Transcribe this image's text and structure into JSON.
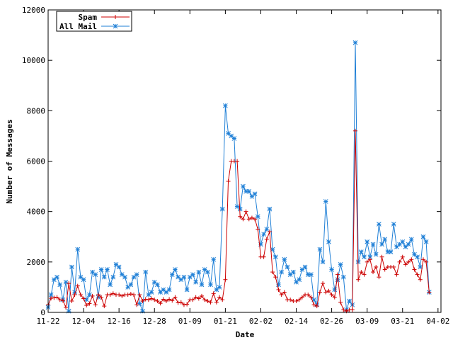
{
  "chart_data": {
    "type": "line",
    "xlabel": "Date",
    "ylabel": "Number of Messages",
    "ylim": [
      0,
      12000
    ],
    "yticks": [
      0,
      2000,
      4000,
      6000,
      8000,
      10000,
      12000
    ],
    "xticks": [
      "11-22",
      "12-04",
      "12-16",
      "12-28",
      "01-09",
      "01-21",
      "02-02",
      "02-14",
      "02-26",
      "03-09",
      "03-21",
      "04-02"
    ],
    "xlim_days": [
      0,
      133
    ],
    "legend_position": "top-left",
    "grid": false,
    "series": [
      {
        "name": "Spam",
        "color": "#cc0000",
        "marker": "plus",
        "values": [
          [
            0,
            300
          ],
          [
            1,
            560
          ],
          [
            2,
            580
          ],
          [
            3,
            600
          ],
          [
            4,
            500
          ],
          [
            5,
            470
          ],
          [
            6,
            200
          ],
          [
            7,
            1150
          ],
          [
            8,
            450
          ],
          [
            9,
            700
          ],
          [
            10,
            1050
          ],
          [
            11,
            700
          ],
          [
            12,
            550
          ],
          [
            13,
            280
          ],
          [
            14,
            350
          ],
          [
            15,
            650
          ],
          [
            16,
            300
          ],
          [
            17,
            700
          ],
          [
            18,
            600
          ],
          [
            19,
            250
          ],
          [
            20,
            700
          ],
          [
            21,
            700
          ],
          [
            22,
            750
          ],
          [
            23,
            700
          ],
          [
            24,
            700
          ],
          [
            25,
            650
          ],
          [
            26,
            700
          ],
          [
            27,
            700
          ],
          [
            28,
            730
          ],
          [
            29,
            700
          ],
          [
            30,
            300
          ],
          [
            31,
            700
          ],
          [
            32,
            450
          ],
          [
            33,
            520
          ],
          [
            34,
            500
          ],
          [
            35,
            550
          ],
          [
            36,
            500
          ],
          [
            37,
            450
          ],
          [
            38,
            360
          ],
          [
            39,
            520
          ],
          [
            40,
            450
          ],
          [
            41,
            520
          ],
          [
            42,
            470
          ],
          [
            43,
            600
          ],
          [
            44,
            380
          ],
          [
            45,
            400
          ],
          [
            46,
            300
          ],
          [
            47,
            320
          ],
          [
            48,
            500
          ],
          [
            49,
            500
          ],
          [
            50,
            600
          ],
          [
            51,
            550
          ],
          [
            52,
            650
          ],
          [
            53,
            500
          ],
          [
            54,
            450
          ],
          [
            55,
            400
          ],
          [
            56,
            750
          ],
          [
            57,
            400
          ],
          [
            58,
            600
          ],
          [
            59,
            500
          ],
          [
            60,
            1300
          ],
          [
            61,
            5200
          ],
          [
            62,
            6000
          ],
          [
            63,
            6000
          ],
          [
            64,
            6000
          ],
          [
            65,
            3800
          ],
          [
            66,
            3700
          ],
          [
            67,
            4000
          ],
          [
            68,
            3700
          ],
          [
            69,
            3750
          ],
          [
            70,
            3700
          ],
          [
            71,
            3300
          ],
          [
            72,
            2200
          ],
          [
            73,
            2200
          ],
          [
            74,
            2900
          ],
          [
            75,
            3200
          ],
          [
            76,
            1600
          ],
          [
            77,
            1400
          ],
          [
            78,
            900
          ],
          [
            79,
            700
          ],
          [
            80,
            800
          ],
          [
            81,
            500
          ],
          [
            82,
            500
          ],
          [
            83,
            450
          ],
          [
            84,
            450
          ],
          [
            85,
            500
          ],
          [
            86,
            600
          ],
          [
            87,
            700
          ],
          [
            88,
            700
          ],
          [
            89,
            600
          ],
          [
            90,
            300
          ],
          [
            91,
            250
          ],
          [
            92,
            800
          ],
          [
            93,
            1150
          ],
          [
            94,
            800
          ],
          [
            95,
            850
          ],
          [
            96,
            700
          ],
          [
            97,
            600
          ],
          [
            98,
            1500
          ],
          [
            99,
            400
          ],
          [
            100,
            100
          ],
          [
            101,
            50
          ],
          [
            102,
            100
          ],
          [
            103,
            100
          ],
          [
            104,
            7200
          ],
          [
            105,
            1300
          ],
          [
            106,
            1600
          ],
          [
            107,
            1500
          ],
          [
            108,
            2000
          ],
          [
            109,
            2100
          ],
          [
            110,
            1600
          ],
          [
            111,
            1800
          ],
          [
            112,
            1400
          ],
          [
            113,
            2200
          ],
          [
            114,
            1700
          ],
          [
            115,
            1800
          ],
          [
            116,
            1800
          ],
          [
            117,
            1800
          ],
          [
            118,
            1500
          ],
          [
            119,
            2000
          ],
          [
            120,
            2200
          ],
          [
            121,
            1900
          ],
          [
            122,
            2000
          ],
          [
            123,
            2100
          ],
          [
            124,
            1700
          ],
          [
            125,
            1500
          ],
          [
            126,
            1300
          ],
          [
            127,
            2100
          ],
          [
            128,
            2000
          ],
          [
            129,
            800
          ]
        ]
      },
      {
        "name": "All Mail",
        "color": "#1e7fd6",
        "marker": "star",
        "values": [
          [
            0,
            200
          ],
          [
            1,
            700
          ],
          [
            2,
            1300
          ],
          [
            3,
            1400
          ],
          [
            4,
            1100
          ],
          [
            5,
            500
          ],
          [
            6,
            1200
          ],
          [
            7,
            50
          ],
          [
            8,
            1800
          ],
          [
            9,
            800
          ],
          [
            10,
            2500
          ],
          [
            11,
            1400
          ],
          [
            12,
            1300
          ],
          [
            13,
            500
          ],
          [
            14,
            700
          ],
          [
            15,
            1600
          ],
          [
            16,
            1500
          ],
          [
            17,
            600
          ],
          [
            18,
            1700
          ],
          [
            19,
            1400
          ],
          [
            20,
            1700
          ],
          [
            21,
            1100
          ],
          [
            22,
            1400
          ],
          [
            23,
            1900
          ],
          [
            24,
            1800
          ],
          [
            25,
            1500
          ],
          [
            26,
            1400
          ],
          [
            27,
            1000
          ],
          [
            28,
            1100
          ],
          [
            29,
            1400
          ],
          [
            30,
            1500
          ],
          [
            31,
            350
          ],
          [
            32,
            50
          ],
          [
            33,
            1600
          ],
          [
            34,
            700
          ],
          [
            35,
            800
          ],
          [
            36,
            1200
          ],
          [
            37,
            1100
          ],
          [
            38,
            800
          ],
          [
            39,
            900
          ],
          [
            40,
            800
          ],
          [
            41,
            900
          ],
          [
            42,
            1500
          ],
          [
            43,
            1700
          ],
          [
            44,
            1400
          ],
          [
            45,
            1300
          ],
          [
            46,
            1400
          ],
          [
            47,
            900
          ],
          [
            48,
            1400
          ],
          [
            49,
            1500
          ],
          [
            50,
            1200
          ],
          [
            51,
            1600
          ],
          [
            52,
            1100
          ],
          [
            53,
            1700
          ],
          [
            54,
            1600
          ],
          [
            55,
            1100
          ],
          [
            56,
            2100
          ],
          [
            57,
            900
          ],
          [
            58,
            1000
          ],
          [
            59,
            4100
          ],
          [
            60,
            8200
          ],
          [
            61,
            7100
          ],
          [
            62,
            7000
          ],
          [
            63,
            6900
          ],
          [
            64,
            4200
          ],
          [
            65,
            4100
          ],
          [
            66,
            5000
          ],
          [
            67,
            4800
          ],
          [
            68,
            4800
          ],
          [
            69,
            4600
          ],
          [
            70,
            4700
          ],
          [
            71,
            3800
          ],
          [
            72,
            2700
          ],
          [
            73,
            3100
          ],
          [
            74,
            3300
          ],
          [
            75,
            4100
          ],
          [
            76,
            2500
          ],
          [
            77,
            2200
          ],
          [
            78,
            1100
          ],
          [
            79,
            1600
          ],
          [
            80,
            2100
          ],
          [
            81,
            1800
          ],
          [
            82,
            1500
          ],
          [
            83,
            1600
          ],
          [
            84,
            1200
          ],
          [
            85,
            1300
          ],
          [
            86,
            1700
          ],
          [
            87,
            1800
          ],
          [
            88,
            1500
          ],
          [
            89,
            1500
          ],
          [
            90,
            500
          ],
          [
            91,
            300
          ],
          [
            92,
            2500
          ],
          [
            93,
            2000
          ],
          [
            94,
            4400
          ],
          [
            95,
            2800
          ],
          [
            96,
            1700
          ],
          [
            97,
            900
          ],
          [
            98,
            1300
          ],
          [
            99,
            1900
          ],
          [
            100,
            1400
          ],
          [
            101,
            100
          ],
          [
            102,
            450
          ],
          [
            103,
            300
          ],
          [
            104,
            10700
          ],
          [
            105,
            2000
          ],
          [
            106,
            2400
          ],
          [
            107,
            2200
          ],
          [
            108,
            2800
          ],
          [
            109,
            2200
          ],
          [
            110,
            2700
          ],
          [
            111,
            2300
          ],
          [
            112,
            3500
          ],
          [
            113,
            2700
          ],
          [
            114,
            2900
          ],
          [
            115,
            2400
          ],
          [
            116,
            2400
          ],
          [
            117,
            3500
          ],
          [
            118,
            2600
          ],
          [
            119,
            2700
          ],
          [
            120,
            2800
          ],
          [
            121,
            2600
          ],
          [
            122,
            2700
          ],
          [
            123,
            2900
          ],
          [
            124,
            2300
          ],
          [
            125,
            2200
          ],
          [
            126,
            1800
          ],
          [
            127,
            3000
          ],
          [
            128,
            2800
          ],
          [
            129,
            800
          ]
        ]
      }
    ]
  }
}
